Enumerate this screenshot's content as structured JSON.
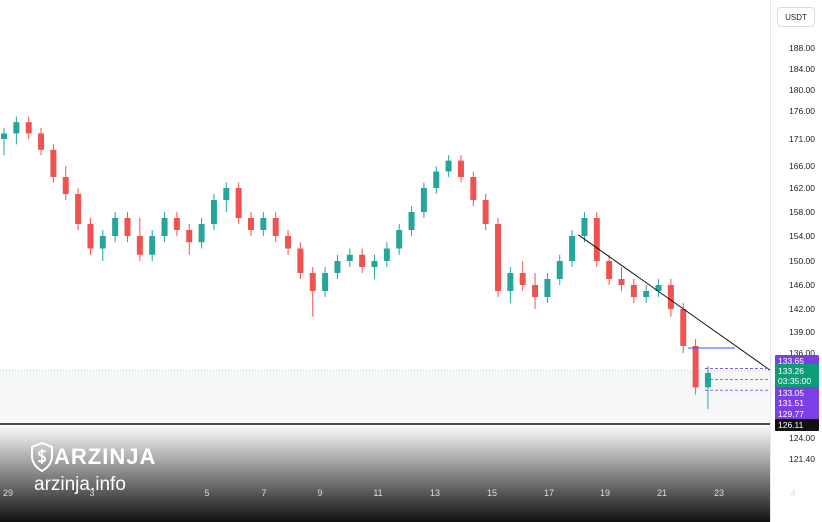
{
  "chart_data": {
    "type": "candlestick",
    "currency": "USDT",
    "y_ticks": [
      188.0,
      184.0,
      180.0,
      176.0,
      171.0,
      166.0,
      162.0,
      158.0,
      154.0,
      150.0,
      146.0,
      142.0,
      139.0,
      136.0,
      124.0,
      121.4
    ],
    "y_tick_labels": [
      "188.00",
      "184.00",
      "180.00",
      "176.00",
      "171.00",
      "166.00",
      "162.00",
      "158.00",
      "154.00",
      "150.00",
      "146.00",
      "142.00",
      "139.00",
      "136.00",
      "124.00",
      "121.40"
    ],
    "x_labels": [
      "29",
      "3",
      "5",
      "7",
      "9",
      "11",
      "13",
      "15",
      "17",
      "19",
      "21",
      "23",
      "4"
    ],
    "price_tags": [
      {
        "name": "high-level",
        "value": "133.65",
        "color": "#7b3fe4"
      },
      {
        "name": "last-price",
        "value": "133.26",
        "countdown": "03:35:00",
        "color": "#0f9d77"
      },
      {
        "name": "level-2",
        "value": "133.05",
        "color": "#7b3fe4"
      },
      {
        "name": "level-3",
        "value": "131.51",
        "color": "#7b3fe4"
      },
      {
        "name": "low-level",
        "value": "129.77",
        "color": "#7b3fe4"
      },
      {
        "name": "support",
        "value": "126.11",
        "color": "#111111"
      }
    ],
    "candles": [
      [
        171,
        173,
        168,
        172
      ],
      [
        172,
        175,
        170,
        174
      ],
      [
        174,
        175,
        171,
        172
      ],
      [
        172,
        173,
        168,
        169
      ],
      [
        169,
        170,
        163,
        164
      ],
      [
        164,
        166,
        160,
        161
      ],
      [
        161,
        162,
        155,
        156
      ],
      [
        156,
        157,
        151,
        152
      ],
      [
        152,
        155,
        150,
        154
      ],
      [
        154,
        158,
        153,
        157
      ],
      [
        157,
        158,
        153,
        154
      ],
      [
        154,
        157,
        150,
        151
      ],
      [
        151,
        155,
        150,
        154
      ],
      [
        154,
        158,
        153,
        157
      ],
      [
        157,
        158,
        154,
        155
      ],
      [
        155,
        156,
        151,
        153
      ],
      [
        153,
        157,
        152,
        156
      ],
      [
        156,
        161,
        155,
        160
      ],
      [
        160,
        163,
        158,
        162
      ],
      [
        162,
        163,
        156,
        157
      ],
      [
        157,
        158,
        154,
        155
      ],
      [
        155,
        158,
        154,
        157
      ],
      [
        157,
        158,
        153,
        154
      ],
      [
        154,
        155,
        151,
        152
      ],
      [
        152,
        153,
        147,
        148
      ],
      [
        148,
        149,
        141,
        145
      ],
      [
        145,
        149,
        144,
        148
      ],
      [
        148,
        151,
        147,
        150
      ],
      [
        150,
        152,
        149,
        151
      ],
      [
        151,
        152,
        148,
        149
      ],
      [
        149,
        151,
        147,
        150
      ],
      [
        150,
        153,
        149,
        152
      ],
      [
        152,
        156,
        151,
        155
      ],
      [
        155,
        159,
        154,
        158
      ],
      [
        158,
        163,
        157,
        162
      ],
      [
        162,
        166,
        161,
        165
      ],
      [
        165,
        168,
        164,
        167
      ],
      [
        167,
        168,
        163,
        164
      ],
      [
        164,
        165,
        159,
        160
      ],
      [
        160,
        161,
        155,
        156
      ],
      [
        156,
        157,
        144,
        145
      ],
      [
        145,
        149,
        143,
        148
      ],
      [
        148,
        150,
        145,
        146
      ],
      [
        146,
        148,
        142,
        144
      ],
      [
        144,
        148,
        143,
        147
      ],
      [
        147,
        151,
        146,
        150
      ],
      [
        150,
        155,
        149,
        154
      ],
      [
        154,
        158,
        153,
        157
      ],
      [
        157,
        158,
        149,
        150
      ],
      [
        150,
        151,
        146,
        147
      ],
      [
        147,
        149,
        145,
        146
      ],
      [
        146,
        147,
        143,
        144
      ],
      [
        144,
        146,
        143,
        145
      ],
      [
        145,
        147,
        144,
        146
      ],
      [
        146,
        147,
        141,
        142
      ],
      [
        142,
        143,
        136,
        137
      ],
      [
        137,
        138,
        130,
        131
      ],
      [
        131,
        134,
        128,
        133
      ]
    ],
    "trendline": {
      "from": [
        46.5,
        154.2
      ],
      "to": [
        57.5,
        133.4
      ]
    }
  }
}
